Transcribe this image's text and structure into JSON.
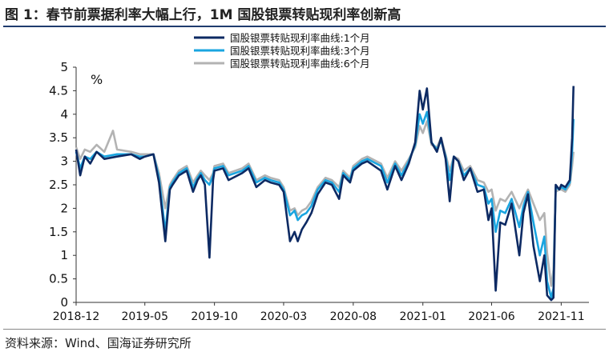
{
  "title": "图 1：春节前票据利率大幅上行，1M 国股银票转贴现利率创新高",
  "source": "资料来源：Wind、国海证券研究所",
  "chart_data": {
    "type": "line",
    "unit_label": "%",
    "ylim": [
      0,
      5
    ],
    "y_ticks": [
      "0",
      "0.5",
      "1",
      "1.5",
      "2",
      "2.5",
      "3",
      "3.5",
      "4",
      "4.5",
      "5"
    ],
    "x_ticks": [
      "2018-12",
      "2019-05",
      "2019-10",
      "2020-03",
      "2020-08",
      "2021-01",
      "2021-06",
      "2021-11"
    ],
    "x_range": [
      "2018-12",
      "2022-01"
    ],
    "legend_position": "top-center",
    "grid": false,
    "series": [
      {
        "name": "国股银票转贴现利率曲线:1个月",
        "color": "#0d2a63",
        "points": [
          [
            "2018-12",
            3.25
          ],
          [
            "2018-12-10",
            2.7
          ],
          [
            "2018-12-20",
            3.1
          ],
          [
            "2019-01",
            2.95
          ],
          [
            "2019-01-15",
            3.2
          ],
          [
            "2019-02",
            3.05
          ],
          [
            "2019-03",
            3.1
          ],
          [
            "2019-04",
            3.15
          ],
          [
            "2019-04-20",
            3.05
          ],
          [
            "2019-05",
            3.1
          ],
          [
            "2019-05-20",
            3.15
          ],
          [
            "2019-06",
            2.55
          ],
          [
            "2019-06-15",
            1.3
          ],
          [
            "2019-06-25",
            2.4
          ],
          [
            "2019-07",
            2.5
          ],
          [
            "2019-07-15",
            2.7
          ],
          [
            "2019-08",
            2.8
          ],
          [
            "2019-08-15",
            2.35
          ],
          [
            "2019-08-25",
            2.6
          ],
          [
            "2019-09",
            2.7
          ],
          [
            "2019-09-10",
            2.5
          ],
          [
            "2019-09-20",
            0.95
          ],
          [
            "2019-09-28",
            2.6
          ],
          [
            "2019-10",
            2.8
          ],
          [
            "2019-10-20",
            2.85
          ],
          [
            "2019-11",
            2.6
          ],
          [
            "2019-12",
            2.75
          ],
          [
            "2019-12-15",
            2.85
          ],
          [
            "2020-01",
            2.45
          ],
          [
            "2020-01-20",
            2.6
          ],
          [
            "2020-02",
            2.55
          ],
          [
            "2020-02-20",
            2.5
          ],
          [
            "2020-03",
            2.35
          ],
          [
            "2020-03-15",
            1.3
          ],
          [
            "2020-03-25",
            1.5
          ],
          [
            "2020-04",
            1.3
          ],
          [
            "2020-04-10",
            1.55
          ],
          [
            "2020-04-20",
            1.7
          ],
          [
            "2020-05",
            1.9
          ],
          [
            "2020-05-15",
            2.3
          ],
          [
            "2020-06",
            2.55
          ],
          [
            "2020-06-15",
            2.5
          ],
          [
            "2020-07",
            2.2
          ],
          [
            "2020-07-10",
            2.7
          ],
          [
            "2020-07-25",
            2.55
          ],
          [
            "2020-08",
            2.8
          ],
          [
            "2020-08-20",
            2.95
          ],
          [
            "2020-09",
            3.0
          ],
          [
            "2020-10",
            2.8
          ],
          [
            "2020-10-15",
            2.4
          ],
          [
            "2020-11",
            2.9
          ],
          [
            "2020-11-15",
            2.6
          ],
          [
            "2020-12",
            2.95
          ],
          [
            "2020-12-15",
            3.4
          ],
          [
            "2020-12-25",
            4.5
          ],
          [
            "2021-01",
            4.1
          ],
          [
            "2021-01-10",
            4.55
          ],
          [
            "2021-01-20",
            3.4
          ],
          [
            "2021-02",
            3.2
          ],
          [
            "2021-02-10",
            3.5
          ],
          [
            "2021-02-20",
            3.05
          ],
          [
            "2021-03",
            2.15
          ],
          [
            "2021-03-10",
            3.1
          ],
          [
            "2021-03-20",
            3.0
          ],
          [
            "2021-04",
            2.6
          ],
          [
            "2021-04-15",
            2.85
          ],
          [
            "2021-05",
            2.35
          ],
          [
            "2021-05-15",
            2.4
          ],
          [
            "2021-05-25",
            1.75
          ],
          [
            "2021-06",
            2.0
          ],
          [
            "2021-06-10",
            0.25
          ],
          [
            "2021-06-20",
            1.7
          ],
          [
            "2021-07",
            1.65
          ],
          [
            "2021-07-15",
            2.1
          ],
          [
            "2021-08",
            1.0
          ],
          [
            "2021-08-10",
            1.9
          ],
          [
            "2021-08-20",
            2.3
          ],
          [
            "2021-09",
            1.2
          ],
          [
            "2021-09-15",
            0.45
          ],
          [
            "2021-09-25",
            1.0
          ],
          [
            "2021-10",
            0.15
          ],
          [
            "2021-10-10",
            0.05
          ],
          [
            "2021-10-15",
            0.1
          ],
          [
            "2021-10-20",
            2.5
          ],
          [
            "2021-10-28",
            2.4
          ],
          [
            "2021-11",
            2.5
          ],
          [
            "2021-11-10",
            2.45
          ],
          [
            "2021-11-20",
            2.6
          ],
          [
            "2021-11-25",
            3.5
          ],
          [
            "2021-11-28",
            4.6
          ]
        ]
      },
      {
        "name": "国股银票转贴现利率曲线:3个月",
        "color": "#1aa5e0",
        "points": [
          [
            "2018-12",
            3.2
          ],
          [
            "2018-12-10",
            2.85
          ],
          [
            "2018-12-20",
            3.1
          ],
          [
            "2019-01",
            3.05
          ],
          [
            "2019-01-15",
            3.2
          ],
          [
            "2019-02",
            3.1
          ],
          [
            "2019-03",
            3.15
          ],
          [
            "2019-04",
            3.15
          ],
          [
            "2019-04-20",
            3.1
          ],
          [
            "2019-05",
            3.1
          ],
          [
            "2019-05-20",
            3.15
          ],
          [
            "2019-06",
            2.65
          ],
          [
            "2019-06-15",
            1.5
          ],
          [
            "2019-06-25",
            2.45
          ],
          [
            "2019-07",
            2.55
          ],
          [
            "2019-07-15",
            2.75
          ],
          [
            "2019-08",
            2.85
          ],
          [
            "2019-08-15",
            2.45
          ],
          [
            "2019-08-25",
            2.65
          ],
          [
            "2019-09",
            2.75
          ],
          [
            "2019-09-10",
            2.6
          ],
          [
            "2019-09-20",
            2.5
          ],
          [
            "2019-09-28",
            2.7
          ],
          [
            "2019-10",
            2.85
          ],
          [
            "2019-10-20",
            2.9
          ],
          [
            "2019-11",
            2.7
          ],
          [
            "2019-12",
            2.8
          ],
          [
            "2019-12-15",
            2.9
          ],
          [
            "2020-01",
            2.55
          ],
          [
            "2020-01-20",
            2.65
          ],
          [
            "2020-02",
            2.6
          ],
          [
            "2020-02-20",
            2.55
          ],
          [
            "2020-03",
            2.4
          ],
          [
            "2020-03-15",
            1.85
          ],
          [
            "2020-03-25",
            1.95
          ],
          [
            "2020-04",
            1.75
          ],
          [
            "2020-04-10",
            1.85
          ],
          [
            "2020-04-20",
            1.9
          ],
          [
            "2020-05",
            2.05
          ],
          [
            "2020-05-15",
            2.4
          ],
          [
            "2020-06",
            2.6
          ],
          [
            "2020-06-15",
            2.55
          ],
          [
            "2020-07",
            2.35
          ],
          [
            "2020-07-10",
            2.75
          ],
          [
            "2020-07-25",
            2.6
          ],
          [
            "2020-08",
            2.85
          ],
          [
            "2020-08-20",
            3.0
          ],
          [
            "2020-09",
            3.05
          ],
          [
            "2020-10",
            2.9
          ],
          [
            "2020-10-15",
            2.55
          ],
          [
            "2020-11",
            2.95
          ],
          [
            "2020-11-15",
            2.7
          ],
          [
            "2020-12",
            3.0
          ],
          [
            "2020-12-15",
            3.35
          ],
          [
            "2020-12-25",
            4.0
          ],
          [
            "2021-01",
            3.8
          ],
          [
            "2021-01-10",
            4.05
          ],
          [
            "2021-01-20",
            3.4
          ],
          [
            "2021-02",
            3.25
          ],
          [
            "2021-02-10",
            3.45
          ],
          [
            "2021-02-20",
            3.1
          ],
          [
            "2021-03",
            2.6
          ],
          [
            "2021-03-10",
            3.1
          ],
          [
            "2021-03-20",
            3.0
          ],
          [
            "2021-04",
            2.7
          ],
          [
            "2021-04-15",
            2.85
          ],
          [
            "2021-05",
            2.5
          ],
          [
            "2021-05-15",
            2.45
          ],
          [
            "2021-05-25",
            2.1
          ],
          [
            "2021-06",
            2.2
          ],
          [
            "2021-06-10",
            1.5
          ],
          [
            "2021-06-20",
            1.95
          ],
          [
            "2021-07",
            1.9
          ],
          [
            "2021-07-15",
            2.2
          ],
          [
            "2021-08",
            1.6
          ],
          [
            "2021-08-10",
            2.05
          ],
          [
            "2021-08-20",
            2.35
          ],
          [
            "2021-09",
            1.7
          ],
          [
            "2021-09-15",
            1.0
          ],
          [
            "2021-09-25",
            1.4
          ],
          [
            "2021-10",
            0.45
          ],
          [
            "2021-10-10",
            0.1
          ],
          [
            "2021-10-15",
            0.3
          ],
          [
            "2021-10-20",
            2.45
          ],
          [
            "2021-10-28",
            2.4
          ],
          [
            "2021-11",
            2.45
          ],
          [
            "2021-11-10",
            2.4
          ],
          [
            "2021-11-20",
            2.55
          ],
          [
            "2021-11-25",
            3.2
          ],
          [
            "2021-11-28",
            3.9
          ]
        ]
      },
      {
        "name": "国股银票转贴现利率曲线:6个月",
        "color": "#b3b3b3",
        "points": [
          [
            "2018-12",
            3.3
          ],
          [
            "2018-12-10",
            3.05
          ],
          [
            "2018-12-20",
            3.25
          ],
          [
            "2019-01",
            3.2
          ],
          [
            "2019-01-15",
            3.35
          ],
          [
            "2019-02",
            3.2
          ],
          [
            "2019-02-20",
            3.65
          ],
          [
            "2019-03",
            3.25
          ],
          [
            "2019-04",
            3.2
          ],
          [
            "2019-04-20",
            3.15
          ],
          [
            "2019-05",
            3.15
          ],
          [
            "2019-05-20",
            3.15
          ],
          [
            "2019-06",
            2.75
          ],
          [
            "2019-06-15",
            2.0
          ],
          [
            "2019-06-25",
            2.5
          ],
          [
            "2019-07",
            2.6
          ],
          [
            "2019-07-15",
            2.8
          ],
          [
            "2019-08",
            2.9
          ],
          [
            "2019-08-15",
            2.55
          ],
          [
            "2019-08-25",
            2.7
          ],
          [
            "2019-09",
            2.8
          ],
          [
            "2019-09-10",
            2.7
          ],
          [
            "2019-09-20",
            2.6
          ],
          [
            "2019-09-28",
            2.75
          ],
          [
            "2019-10",
            2.9
          ],
          [
            "2019-10-20",
            2.95
          ],
          [
            "2019-11",
            2.75
          ],
          [
            "2019-12",
            2.85
          ],
          [
            "2019-12-15",
            2.95
          ],
          [
            "2020-01",
            2.6
          ],
          [
            "2020-01-20",
            2.7
          ],
          [
            "2020-02",
            2.65
          ],
          [
            "2020-02-20",
            2.6
          ],
          [
            "2020-03",
            2.45
          ],
          [
            "2020-03-15",
            1.95
          ],
          [
            "2020-03-25",
            2.0
          ],
          [
            "2020-04",
            1.85
          ],
          [
            "2020-04-10",
            1.95
          ],
          [
            "2020-04-20",
            2.0
          ],
          [
            "2020-05",
            2.15
          ],
          [
            "2020-05-15",
            2.45
          ],
          [
            "2020-06",
            2.65
          ],
          [
            "2020-06-15",
            2.6
          ],
          [
            "2020-07",
            2.45
          ],
          [
            "2020-07-10",
            2.8
          ],
          [
            "2020-07-25",
            2.65
          ],
          [
            "2020-08",
            2.9
          ],
          [
            "2020-08-20",
            3.05
          ],
          [
            "2020-09",
            3.1
          ],
          [
            "2020-10",
            2.95
          ],
          [
            "2020-10-15",
            2.65
          ],
          [
            "2020-11",
            3.0
          ],
          [
            "2020-11-15",
            2.8
          ],
          [
            "2020-12",
            3.05
          ],
          [
            "2020-12-15",
            3.3
          ],
          [
            "2020-12-25",
            3.75
          ],
          [
            "2021-01",
            3.6
          ],
          [
            "2021-01-10",
            3.85
          ],
          [
            "2021-01-20",
            3.35
          ],
          [
            "2021-02",
            3.3
          ],
          [
            "2021-02-10",
            3.5
          ],
          [
            "2021-02-20",
            3.15
          ],
          [
            "2021-03",
            2.8
          ],
          [
            "2021-03-10",
            3.1
          ],
          [
            "2021-03-20",
            3.05
          ],
          [
            "2021-04",
            2.8
          ],
          [
            "2021-04-15",
            2.9
          ],
          [
            "2021-05",
            2.6
          ],
          [
            "2021-05-15",
            2.55
          ],
          [
            "2021-05-25",
            2.35
          ],
          [
            "2021-06",
            2.4
          ],
          [
            "2021-06-10",
            1.95
          ],
          [
            "2021-06-20",
            2.2
          ],
          [
            "2021-07",
            2.15
          ],
          [
            "2021-07-15",
            2.35
          ],
          [
            "2021-08",
            2.0
          ],
          [
            "2021-08-10",
            2.2
          ],
          [
            "2021-08-20",
            2.4
          ],
          [
            "2021-09",
            2.1
          ],
          [
            "2021-09-15",
            1.75
          ],
          [
            "2021-09-25",
            1.9
          ],
          [
            "2021-10",
            1.05
          ],
          [
            "2021-10-10",
            0.35
          ],
          [
            "2021-10-15",
            0.7
          ],
          [
            "2021-10-20",
            2.35
          ],
          [
            "2021-10-28",
            2.4
          ],
          [
            "2021-11",
            2.4
          ],
          [
            "2021-11-10",
            2.35
          ],
          [
            "2021-11-20",
            2.5
          ],
          [
            "2021-11-25",
            2.9
          ],
          [
            "2021-11-28",
            3.2
          ]
        ]
      }
    ]
  }
}
